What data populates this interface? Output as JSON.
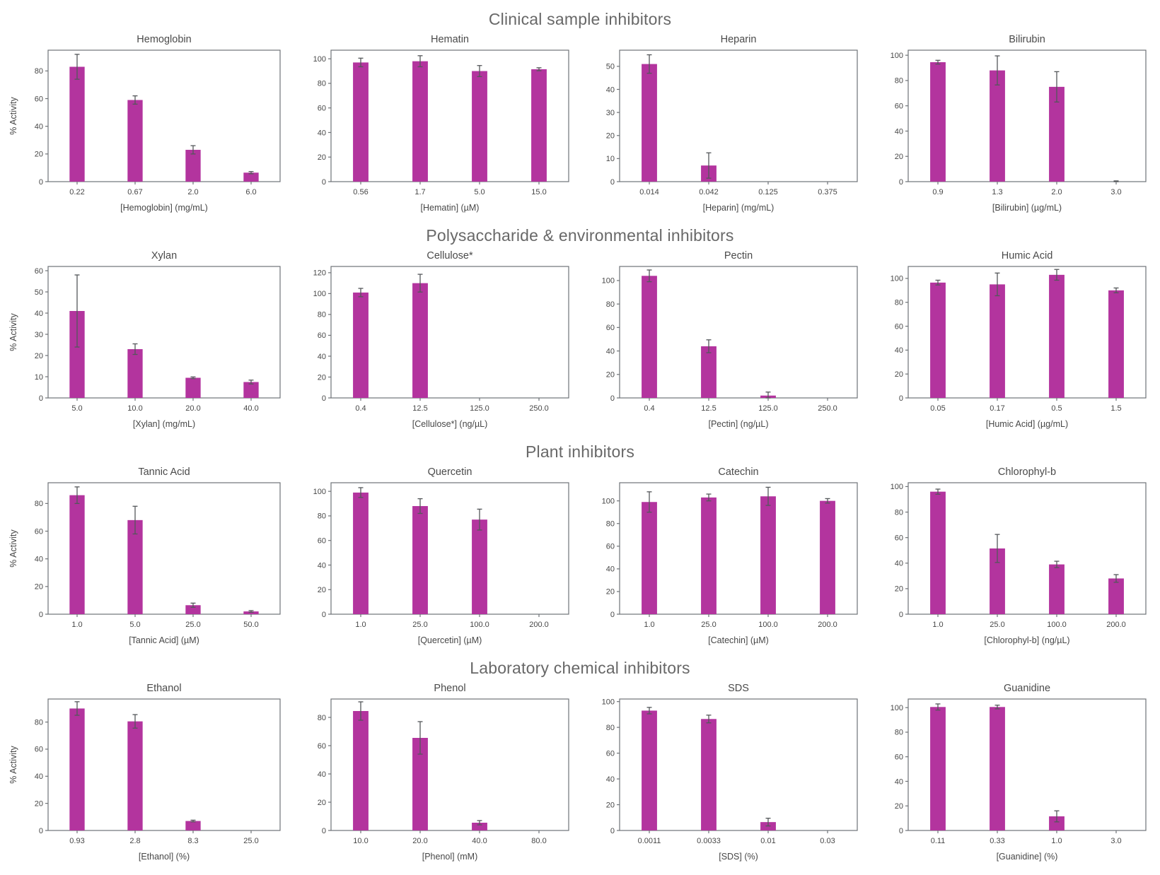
{
  "figure": {
    "bar_color": "#b3349e",
    "error_color": "#54575a",
    "axis_color": "#6f7377",
    "tick_text_color": "#474747",
    "title_text_color": "#4a4a4a",
    "section_title_color": "#686868",
    "ylabel": "% Activity"
  },
  "sections": [
    {
      "title": "Clinical sample inhibitors"
    },
    {
      "title": "Polysaccharide & environmental inhibitors"
    },
    {
      "title": "Plant inhibitors"
    },
    {
      "title": "Laboratory chemical inhibitors"
    }
  ],
  "chart_data": [
    {
      "section": 0,
      "type": "bar",
      "title": "Hemoglobin",
      "xlabel": "[Hemoglobin] (mg/mL)",
      "ylabel": "% Activity",
      "show_ylabel": true,
      "categories": [
        "0.22",
        "0.67",
        "2.0",
        "6.0"
      ],
      "values": [
        83,
        59,
        23,
        6.5
      ],
      "errors": [
        9,
        3,
        3,
        0.8
      ],
      "yticks": [
        0,
        20,
        40,
        60,
        80
      ],
      "ylim": [
        0,
        95
      ],
      "grid": false,
      "legend": "none"
    },
    {
      "section": 0,
      "type": "bar",
      "title": "Hematin",
      "xlabel": "[Hematin] (µM)",
      "ylabel": "% Activity",
      "show_ylabel": false,
      "categories": [
        "0.56",
        "1.7",
        "5.0",
        "15.0"
      ],
      "values": [
        97,
        98,
        90,
        91.5
      ],
      "errors": [
        3.5,
        4.5,
        4.5,
        1.2
      ],
      "yticks": [
        0,
        20,
        40,
        60,
        80,
        100
      ],
      "ylim": [
        0,
        107
      ],
      "grid": false,
      "legend": "none"
    },
    {
      "section": 0,
      "type": "bar",
      "title": "Heparin",
      "xlabel": "[Heparin] (mg/mL)",
      "ylabel": "% Activity",
      "show_ylabel": false,
      "categories": [
        "0.014",
        "0.042",
        "0.125",
        "0.375"
      ],
      "values": [
        51,
        7,
        0,
        0
      ],
      "errors": [
        4,
        5.5,
        0,
        0
      ],
      "yticks": [
        0,
        10,
        20,
        30,
        40,
        50
      ],
      "ylim": [
        0,
        57
      ],
      "grid": false,
      "legend": "none"
    },
    {
      "section": 0,
      "type": "bar",
      "title": "Bilirubin",
      "xlabel": "[Bilirubin] (µg/mL)",
      "ylabel": "% Activity",
      "show_ylabel": false,
      "categories": [
        "0.9",
        "1.3",
        "2.0",
        "3.0"
      ],
      "values": [
        94.5,
        88,
        75,
        0
      ],
      "errors": [
        1.5,
        11.5,
        12,
        0.6
      ],
      "yticks": [
        0,
        20,
        40,
        60,
        80,
        100
      ],
      "ylim": [
        0,
        104
      ],
      "grid": false,
      "legend": "none"
    },
    {
      "section": 1,
      "type": "bar",
      "title": "Xylan",
      "xlabel": "[Xylan] (mg/mL)",
      "ylabel": "% Activity",
      "show_ylabel": true,
      "categories": [
        "5.0",
        "10.0",
        "20.0",
        "40.0"
      ],
      "values": [
        41,
        23,
        9.5,
        7.5
      ],
      "errors": [
        17,
        2.5,
        0.4,
        0.9
      ],
      "yticks": [
        0,
        10,
        20,
        30,
        40,
        50,
        60
      ],
      "ylim": [
        0,
        62
      ],
      "grid": false,
      "legend": "none"
    },
    {
      "section": 1,
      "type": "bar",
      "title": "Cellulose*",
      "xlabel": "[Cellulose*] (ng/µL)",
      "ylabel": "% Activity",
      "show_ylabel": false,
      "categories": [
        "0.4",
        "12.5",
        "125.0",
        "250.0"
      ],
      "values": [
        101,
        110,
        0,
        0
      ],
      "errors": [
        4,
        8.5,
        0,
        0
      ],
      "yticks": [
        0,
        20,
        40,
        60,
        80,
        100,
        120
      ],
      "ylim": [
        0,
        126
      ],
      "grid": false,
      "legend": "none"
    },
    {
      "section": 1,
      "type": "bar",
      "title": "Pectin",
      "xlabel": "[Pectin] (ng/µL)",
      "ylabel": "% Activity",
      "show_ylabel": false,
      "categories": [
        "0.4",
        "12.5",
        "125.0",
        "250.0"
      ],
      "values": [
        104,
        44,
        2,
        0
      ],
      "errors": [
        5,
        5.5,
        3,
        0
      ],
      "yticks": [
        0,
        20,
        40,
        60,
        80,
        100
      ],
      "ylim": [
        0,
        112
      ],
      "grid": false,
      "legend": "none"
    },
    {
      "section": 1,
      "type": "bar",
      "title": "Humic Acid",
      "xlabel": "[Humic Acid] (µg/mL)",
      "ylabel": "% Activity",
      "show_ylabel": false,
      "categories": [
        "0.05",
        "0.17",
        "0.5",
        "1.5"
      ],
      "values": [
        96.5,
        95,
        103,
        90
      ],
      "errors": [
        2,
        9.5,
        4.5,
        2
      ],
      "yticks": [
        0,
        20,
        40,
        60,
        80,
        100
      ],
      "ylim": [
        0,
        110
      ],
      "grid": false,
      "legend": "none"
    },
    {
      "section": 2,
      "type": "bar",
      "title": "Tannic Acid",
      "xlabel": "[Tannic Acid] (µM)",
      "ylabel": "% Activity",
      "show_ylabel": true,
      "categories": [
        "1.0",
        "5.0",
        "25.0",
        "50.0"
      ],
      "values": [
        86,
        68,
        6.5,
        2
      ],
      "errors": [
        6,
        10,
        1.5,
        0.6
      ],
      "yticks": [
        0,
        20,
        40,
        60,
        80
      ],
      "ylim": [
        0,
        95
      ],
      "grid": false,
      "legend": "none"
    },
    {
      "section": 2,
      "type": "bar",
      "title": "Quercetin",
      "xlabel": "[Quercetin] (µM)",
      "ylabel": "% Activity",
      "show_ylabel": false,
      "categories": [
        "1.0",
        "25.0",
        "100.0",
        "200.0"
      ],
      "values": [
        99,
        88,
        77,
        0
      ],
      "errors": [
        4,
        6,
        8.5,
        0
      ],
      "yticks": [
        0,
        20,
        40,
        60,
        80,
        100
      ],
      "ylim": [
        0,
        107
      ],
      "grid": false,
      "legend": "none"
    },
    {
      "section": 2,
      "type": "bar",
      "title": "Catechin",
      "xlabel": "[Catechin] (µM)",
      "ylabel": "% Activity",
      "show_ylabel": false,
      "categories": [
        "1.0",
        "25.0",
        "100.0",
        "200.0"
      ],
      "values": [
        99,
        103,
        104,
        100
      ],
      "errors": [
        9,
        3,
        8,
        2
      ],
      "yticks": [
        0,
        20,
        40,
        60,
        80,
        100
      ],
      "ylim": [
        0,
        116
      ],
      "grid": false,
      "legend": "none"
    },
    {
      "section": 2,
      "type": "bar",
      "title": "Chlorophyl-b",
      "xlabel": "[Chlorophyl-b] (ng/µL)",
      "ylabel": "% Activity",
      "show_ylabel": false,
      "categories": [
        "1.0",
        "25.0",
        "100.0",
        "200.0"
      ],
      "values": [
        96,
        51.5,
        39,
        28
      ],
      "errors": [
        2,
        11,
        2.5,
        3
      ],
      "yticks": [
        0,
        20,
        40,
        60,
        80,
        100
      ],
      "ylim": [
        0,
        103
      ],
      "grid": false,
      "legend": "none"
    },
    {
      "section": 3,
      "type": "bar",
      "title": "Ethanol",
      "xlabel": "[Ethanol] (%)",
      "ylabel": "% Activity",
      "show_ylabel": true,
      "categories": [
        "0.93",
        "2.8",
        "8.3",
        "25.0"
      ],
      "values": [
        90,
        80.5,
        7,
        0
      ],
      "errors": [
        5,
        5,
        0.6,
        0
      ],
      "yticks": [
        0,
        20,
        40,
        60,
        80
      ],
      "ylim": [
        0,
        97
      ],
      "grid": false,
      "legend": "none"
    },
    {
      "section": 3,
      "type": "bar",
      "title": "Phenol",
      "xlabel": "[Phenol] (mM)",
      "ylabel": "% Activity",
      "show_ylabel": false,
      "categories": [
        "10.0",
        "20.0",
        "40.0",
        "80.0"
      ],
      "values": [
        84.5,
        65.5,
        5.5,
        0
      ],
      "errors": [
        6.5,
        11.5,
        1.5,
        0
      ],
      "yticks": [
        0,
        20,
        40,
        60,
        80
      ],
      "ylim": [
        0,
        93
      ],
      "grid": false,
      "legend": "none"
    },
    {
      "section": 3,
      "type": "bar",
      "title": "SDS",
      "xlabel": "[SDS] (%)",
      "ylabel": "% Activity",
      "show_ylabel": false,
      "categories": [
        "0.0011",
        "0.0033",
        "0.01",
        "0.03"
      ],
      "values": [
        93,
        86.5,
        6.5,
        0
      ],
      "errors": [
        2.5,
        3,
        3,
        0
      ],
      "yticks": [
        0,
        20,
        40,
        60,
        80,
        100
      ],
      "ylim": [
        0,
        102
      ],
      "grid": false,
      "legend": "none"
    },
    {
      "section": 3,
      "type": "bar",
      "title": "Guanidine",
      "xlabel": "[Guanidine] (%)",
      "ylabel": "% Activity",
      "show_ylabel": false,
      "categories": [
        "0.11",
        "0.33",
        "1.0",
        "3.0"
      ],
      "values": [
        100.5,
        100.5,
        11.5,
        0
      ],
      "errors": [
        2.5,
        1.5,
        4.5,
        0
      ],
      "yticks": [
        0,
        20,
        40,
        60,
        80,
        100
      ],
      "ylim": [
        0,
        107
      ],
      "grid": false,
      "legend": "none"
    }
  ]
}
